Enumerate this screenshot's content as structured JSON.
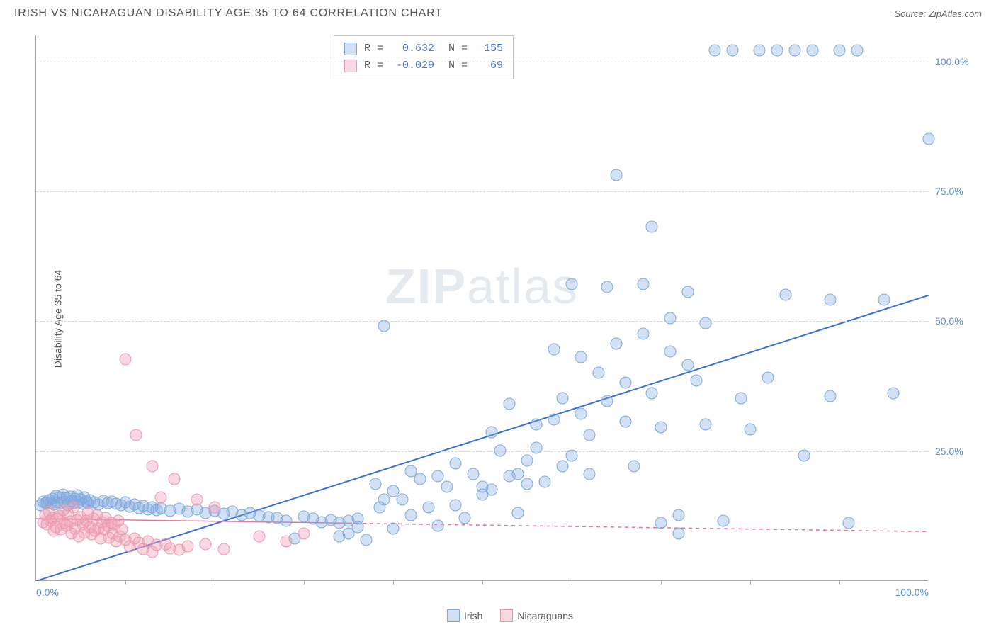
{
  "title": "IRISH VS NICARAGUAN DISABILITY AGE 35 TO 64 CORRELATION CHART",
  "source": "Source: ZipAtlas.com",
  "y_axis_label": "Disability Age 35 to 64",
  "watermark_bold": "ZIP",
  "watermark_light": "atlas",
  "chart": {
    "type": "scatter",
    "xlim": [
      0,
      100
    ],
    "ylim": [
      0,
      105
    ],
    "x_tick_labels": {
      "0": "0.0%",
      "100": "100.0%"
    },
    "x_minor_ticks": [
      10,
      20,
      30,
      40,
      50,
      60,
      70,
      80,
      90
    ],
    "y_ticks": [
      25,
      50,
      75,
      100
    ],
    "y_tick_labels": {
      "25": "25.0%",
      "50": "50.0%",
      "75": "75.0%",
      "100": "100.0%"
    },
    "background_color": "#ffffff",
    "grid_color": "#d8d8d8",
    "axis_color": "#aaaaaa",
    "tick_label_color": "#5b8fd4",
    "point_radius": 8.5,
    "series": {
      "irish": {
        "label": "Irish",
        "fill": "rgba(130,170,225,0.35)",
        "stroke": "#7fa8d9",
        "trend": {
          "x1": 0,
          "y1": 0,
          "x2": 100,
          "y2": 55,
          "color": "#3a6fd8",
          "width": 2,
          "dash": "none"
        },
        "stats": {
          "R": "0.632",
          "N": "155"
        },
        "points": [
          [
            0.5,
            14.5
          ],
          [
            0.8,
            15.2
          ],
          [
            1.0,
            14.8
          ],
          [
            1.2,
            15.0
          ],
          [
            1.4,
            15.4
          ],
          [
            1.6,
            14.9
          ],
          [
            1.8,
            15.7
          ],
          [
            2.0,
            14.6
          ],
          [
            2.2,
            16.2
          ],
          [
            2.4,
            15.0
          ],
          [
            2.6,
            15.9
          ],
          [
            2.8,
            14.8
          ],
          [
            3.0,
            16.5
          ],
          [
            3.2,
            15.2
          ],
          [
            3.4,
            15.8
          ],
          [
            3.6,
            14.5
          ],
          [
            3.8,
            16.1
          ],
          [
            4.0,
            15.3
          ],
          [
            4.2,
            14.9
          ],
          [
            4.4,
            15.7
          ],
          [
            4.6,
            16.3
          ],
          [
            4.8,
            15.0
          ],
          [
            5.0,
            15.6
          ],
          [
            5.2,
            14.7
          ],
          [
            5.4,
            15.9
          ],
          [
            5.6,
            15.1
          ],
          [
            5.8,
            14.8
          ],
          [
            6.0,
            15.4
          ],
          [
            6.5,
            15.0
          ],
          [
            7.0,
            14.6
          ],
          [
            7.5,
            15.3
          ],
          [
            8.0,
            14.9
          ],
          [
            8.5,
            15.1
          ],
          [
            9.0,
            14.7
          ],
          [
            9.5,
            14.4
          ],
          [
            10.0,
            15.0
          ],
          [
            10.5,
            14.2
          ],
          [
            11.0,
            14.6
          ],
          [
            11.5,
            13.9
          ],
          [
            12.0,
            14.3
          ],
          [
            12.5,
            13.7
          ],
          [
            13.0,
            14.1
          ],
          [
            13.5,
            13.5
          ],
          [
            14.0,
            13.9
          ],
          [
            15.0,
            13.4
          ],
          [
            16.0,
            13.8
          ],
          [
            17.0,
            13.2
          ],
          [
            18.0,
            13.6
          ],
          [
            19.0,
            13.0
          ],
          [
            20.0,
            13.4
          ],
          [
            21.0,
            12.8
          ],
          [
            22.0,
            13.2
          ],
          [
            23.0,
            12.6
          ],
          [
            24.0,
            13.0
          ],
          [
            25.0,
            12.4
          ],
          [
            26.0,
            12.2
          ],
          [
            27.0,
            12.0
          ],
          [
            28.0,
            11.5
          ],
          [
            29.0,
            8.0
          ],
          [
            30.0,
            12.3
          ],
          [
            31.0,
            11.8
          ],
          [
            32.0,
            11.2
          ],
          [
            33.0,
            11.6
          ],
          [
            34.0,
            11.0
          ],
          [
            34.0,
            8.5
          ],
          [
            35.0,
            11.4
          ],
          [
            35.0,
            9.0
          ],
          [
            36.0,
            11.8
          ],
          [
            36.0,
            10.2
          ],
          [
            37.0,
            7.8
          ],
          [
            38.0,
            18.5
          ],
          [
            38.5,
            14.0
          ],
          [
            39.0,
            15.5
          ],
          [
            39.0,
            49.0
          ],
          [
            40.0,
            10.0
          ],
          [
            40.0,
            17.2
          ],
          [
            41.0,
            15.5
          ],
          [
            42.0,
            12.5
          ],
          [
            42.0,
            21.0
          ],
          [
            43.0,
            19.5
          ],
          [
            44.0,
            14.0
          ],
          [
            45.0,
            20.0
          ],
          [
            45.0,
            10.5
          ],
          [
            46.0,
            18.0
          ],
          [
            47.0,
            14.5
          ],
          [
            47.0,
            22.5
          ],
          [
            48.0,
            12.0
          ],
          [
            49.0,
            20.5
          ],
          [
            50.0,
            18.0
          ],
          [
            50.0,
            16.5
          ],
          [
            51.0,
            17.5
          ],
          [
            51.0,
            28.5
          ],
          [
            52.0,
            25.0
          ],
          [
            53.0,
            20.0
          ],
          [
            53.0,
            34.0
          ],
          [
            54.0,
            20.5
          ],
          [
            54.0,
            13.0
          ],
          [
            55.0,
            23.0
          ],
          [
            55.0,
            18.5
          ],
          [
            56.0,
            25.5
          ],
          [
            56.0,
            30.0
          ],
          [
            57.0,
            19.0
          ],
          [
            58.0,
            44.5
          ],
          [
            58.0,
            31.0
          ],
          [
            59.0,
            35.0
          ],
          [
            59.0,
            22.0
          ],
          [
            60.0,
            57.0
          ],
          [
            60.0,
            24.0
          ],
          [
            61.0,
            32.0
          ],
          [
            61.0,
            43.0
          ],
          [
            62.0,
            28.0
          ],
          [
            62.0,
            20.5
          ],
          [
            63.0,
            40.0
          ],
          [
            64.0,
            56.5
          ],
          [
            64.0,
            34.5
          ],
          [
            65.0,
            78.0
          ],
          [
            65.0,
            45.5
          ],
          [
            66.0,
            38.0
          ],
          [
            66.0,
            30.5
          ],
          [
            67.0,
            22.0
          ],
          [
            68.0,
            57.0
          ],
          [
            68.0,
            47.5
          ],
          [
            69.0,
            68.0
          ],
          [
            69.0,
            36.0
          ],
          [
            70.0,
            29.5
          ],
          [
            70.0,
            11.0
          ],
          [
            71.0,
            44.0
          ],
          [
            71.0,
            50.5
          ],
          [
            72.0,
            12.5
          ],
          [
            72.0,
            9.0
          ],
          [
            73.0,
            55.5
          ],
          [
            73.0,
            41.5
          ],
          [
            74.0,
            38.5
          ],
          [
            75.0,
            30.0
          ],
          [
            75.0,
            49.5
          ],
          [
            76.0,
            102.0
          ],
          [
            77.0,
            11.5
          ],
          [
            78.0,
            102.0
          ],
          [
            79.0,
            35.0
          ],
          [
            80.0,
            29.0
          ],
          [
            81.0,
            102.0
          ],
          [
            82.0,
            39.0
          ],
          [
            83.0,
            102.0
          ],
          [
            84.0,
            55.0
          ],
          [
            85.0,
            102.0
          ],
          [
            86.0,
            24.0
          ],
          [
            87.0,
            102.0
          ],
          [
            89.0,
            35.5
          ],
          [
            89.0,
            54.0
          ],
          [
            90.0,
            102.0
          ],
          [
            91.0,
            11.0
          ],
          [
            92.0,
            102.0
          ],
          [
            95.0,
            54.0
          ],
          [
            96.0,
            36.0
          ],
          [
            100.0,
            85.0
          ]
        ]
      },
      "nicaraguan": {
        "label": "Nicaraguans",
        "fill": "rgba(240,155,175,0.38)",
        "stroke": "#e89ab0",
        "trend": {
          "x1": 0,
          "y1": 12.0,
          "x2": 100,
          "y2": 9.5,
          "color": "#e27a98",
          "width": 1.5,
          "dash_solid_to_x": 35,
          "dash": "5,5"
        },
        "stats": {
          "R": "-0.029",
          "N": "69"
        },
        "points": [
          [
            0.8,
            11.2
          ],
          [
            1.0,
            12.5
          ],
          [
            1.2,
            10.8
          ],
          [
            1.4,
            13.2
          ],
          [
            1.6,
            11.5
          ],
          [
            1.8,
            12.0
          ],
          [
            2.0,
            9.5
          ],
          [
            2.2,
            10.2
          ],
          [
            2.4,
            11.8
          ],
          [
            2.6,
            12.4
          ],
          [
            2.8,
            9.8
          ],
          [
            3.0,
            13.5
          ],
          [
            3.2,
            11.0
          ],
          [
            3.4,
            10.5
          ],
          [
            3.6,
            12.8
          ],
          [
            3.8,
            11.3
          ],
          [
            4.0,
            9.0
          ],
          [
            4.2,
            14.0
          ],
          [
            4.4,
            10.0
          ],
          [
            4.6,
            11.6
          ],
          [
            4.8,
            8.5
          ],
          [
            5.0,
            12.2
          ],
          [
            5.2,
            10.8
          ],
          [
            5.4,
            9.2
          ],
          [
            5.6,
            11.4
          ],
          [
            5.8,
            13.0
          ],
          [
            6.0,
            10.2
          ],
          [
            6.2,
            8.8
          ],
          [
            6.4,
            11.8
          ],
          [
            6.6,
            9.5
          ],
          [
            6.8,
            12.5
          ],
          [
            7.0,
            10.0
          ],
          [
            7.2,
            8.0
          ],
          [
            7.4,
            11.2
          ],
          [
            7.6,
            9.8
          ],
          [
            7.8,
            12.0
          ],
          [
            8.0,
            10.5
          ],
          [
            8.2,
            8.2
          ],
          [
            8.4,
            11.0
          ],
          [
            8.6,
            9.0
          ],
          [
            8.8,
            10.8
          ],
          [
            9.0,
            7.5
          ],
          [
            9.2,
            11.5
          ],
          [
            9.4,
            8.5
          ],
          [
            9.6,
            9.8
          ],
          [
            10.0,
            7.8
          ],
          [
            10.0,
            42.5
          ],
          [
            10.5,
            6.5
          ],
          [
            11.0,
            8.0
          ],
          [
            11.2,
            28.0
          ],
          [
            11.5,
            7.2
          ],
          [
            12.0,
            6.0
          ],
          [
            12.5,
            7.5
          ],
          [
            13.0,
            5.5
          ],
          [
            13.0,
            22.0
          ],
          [
            13.5,
            6.8
          ],
          [
            14.0,
            16.0
          ],
          [
            14.5,
            7.0
          ],
          [
            15.0,
            6.2
          ],
          [
            15.5,
            19.5
          ],
          [
            16.0,
            5.8
          ],
          [
            17.0,
            6.5
          ],
          [
            18.0,
            15.5
          ],
          [
            19.0,
            7.0
          ],
          [
            20.0,
            14.0
          ],
          [
            21.0,
            6.0
          ],
          [
            25.0,
            8.5
          ],
          [
            28.0,
            7.5
          ],
          [
            30.0,
            9.0
          ]
        ]
      }
    }
  },
  "legend": {
    "stats_rows": [
      {
        "series": "irish",
        "R_label": "R =",
        "N_label": "N ="
      },
      {
        "series": "nicaraguan",
        "R_label": "R =",
        "N_label": "N ="
      }
    ]
  }
}
